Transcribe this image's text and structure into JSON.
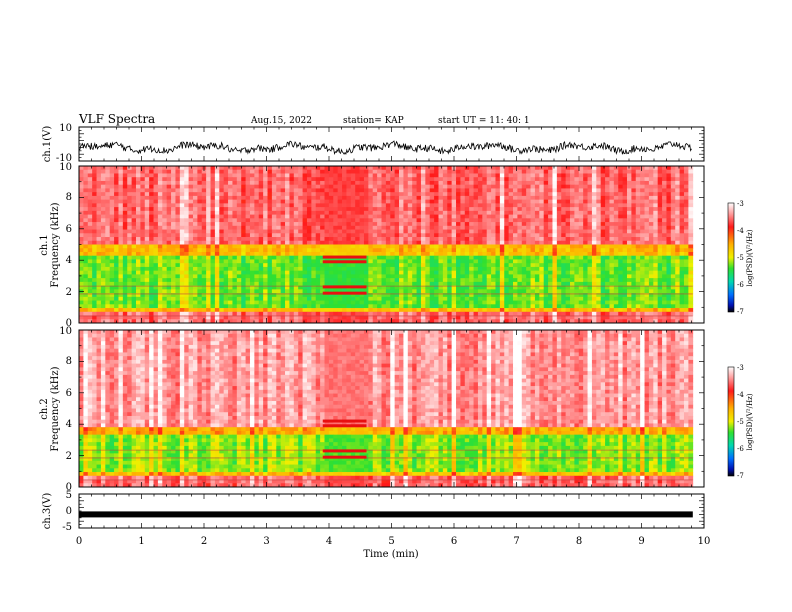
{
  "header": {
    "title": "VLF Spectra",
    "date": "Aug.15, 2022",
    "station": "station= KAP",
    "start": "start  UT  =    11: 40: 1"
  },
  "chart_data": [
    {
      "type": "line",
      "panel": "ch1-waveform",
      "ylabel": "ch.1(V)",
      "ylim": [
        -10,
        10
      ],
      "yticks": [
        "10",
        "-10"
      ],
      "xlim": [
        0,
        10
      ],
      "series": [
        {
          "values_summary": "noisy waveform oscillating roughly between -6 and +2 V, x from 0 to 9.8 min"
        }
      ],
      "color": "#000000"
    },
    {
      "type": "heatmap",
      "panel": "ch1-spectrogram",
      "ylabel": "ch.1\nFrequency  (kHz)",
      "ylabel_line1": "ch.1",
      "ylabel_line2": "Frequency  (kHz)",
      "ylim": [
        0,
        10
      ],
      "yticks": [
        "0",
        "2",
        "4",
        "6",
        "8",
        "10"
      ],
      "xlim": [
        0,
        10
      ],
      "data_xmax": 9.82,
      "bands_kHz": [
        {
          "from": 0,
          "to": 0.6,
          "log_psd": -3.6
        },
        {
          "from": 0.6,
          "to": 1.0,
          "log_psd": -4.6
        },
        {
          "from": 1.0,
          "to": 4.2,
          "log_psd": -5.3
        },
        {
          "from": 4.2,
          "to": 5.0,
          "log_psd": -4.6
        },
        {
          "from": 5.0,
          "to": 10,
          "log_psd": -3.6
        }
      ],
      "calibration_interval_min": [
        3.9,
        4.6
      ],
      "colorbar": {
        "min": -7,
        "max": -3,
        "ticks": [
          "-3",
          "-4",
          "-5",
          "-6",
          "-7"
        ],
        "label": "log(PSD)(V²/Hz)"
      }
    },
    {
      "type": "heatmap",
      "panel": "ch2-spectrogram",
      "ylabel_line1": "ch.2",
      "ylabel_line2": "Frequency  (kHz)",
      "ylim": [
        0,
        10
      ],
      "yticks": [
        "0",
        "2",
        "4",
        "6",
        "8",
        "10"
      ],
      "xlim": [
        0,
        10
      ],
      "data_xmax": 9.82,
      "bands_kHz": [
        {
          "from": 0,
          "to": 0.6,
          "log_psd": -3.6
        },
        {
          "from": 0.6,
          "to": 1.0,
          "log_psd": -4.6
        },
        {
          "from": 1.0,
          "to": 3.3,
          "log_psd": -5.2
        },
        {
          "from": 3.3,
          "to": 3.8,
          "log_psd": -4.5
        },
        {
          "from": 3.8,
          "to": 10,
          "log_psd": -3.4
        }
      ],
      "calibration_interval_min": [
        3.9,
        4.6
      ],
      "colorbar": {
        "min": -7,
        "max": -3,
        "ticks": [
          "-3",
          "-4",
          "-5",
          "-6",
          "-7"
        ],
        "label": "log(PSD)(V²/Hz)"
      }
    },
    {
      "type": "line",
      "panel": "ch3-waveform",
      "ylabel": "ch.3(V)",
      "ylim": [
        -5,
        5
      ],
      "yticks": [
        "5",
        "0",
        "-5"
      ],
      "xlim": [
        0,
        10
      ],
      "series": [
        {
          "values_summary": "constant near -1 V with small ripple",
          "level": -1
        }
      ],
      "xticks": [
        "0",
        "1",
        "2",
        "3",
        "4",
        "5",
        "6",
        "7",
        "8",
        "9",
        "10"
      ],
      "xlabel": "Time  (min)"
    }
  ]
}
